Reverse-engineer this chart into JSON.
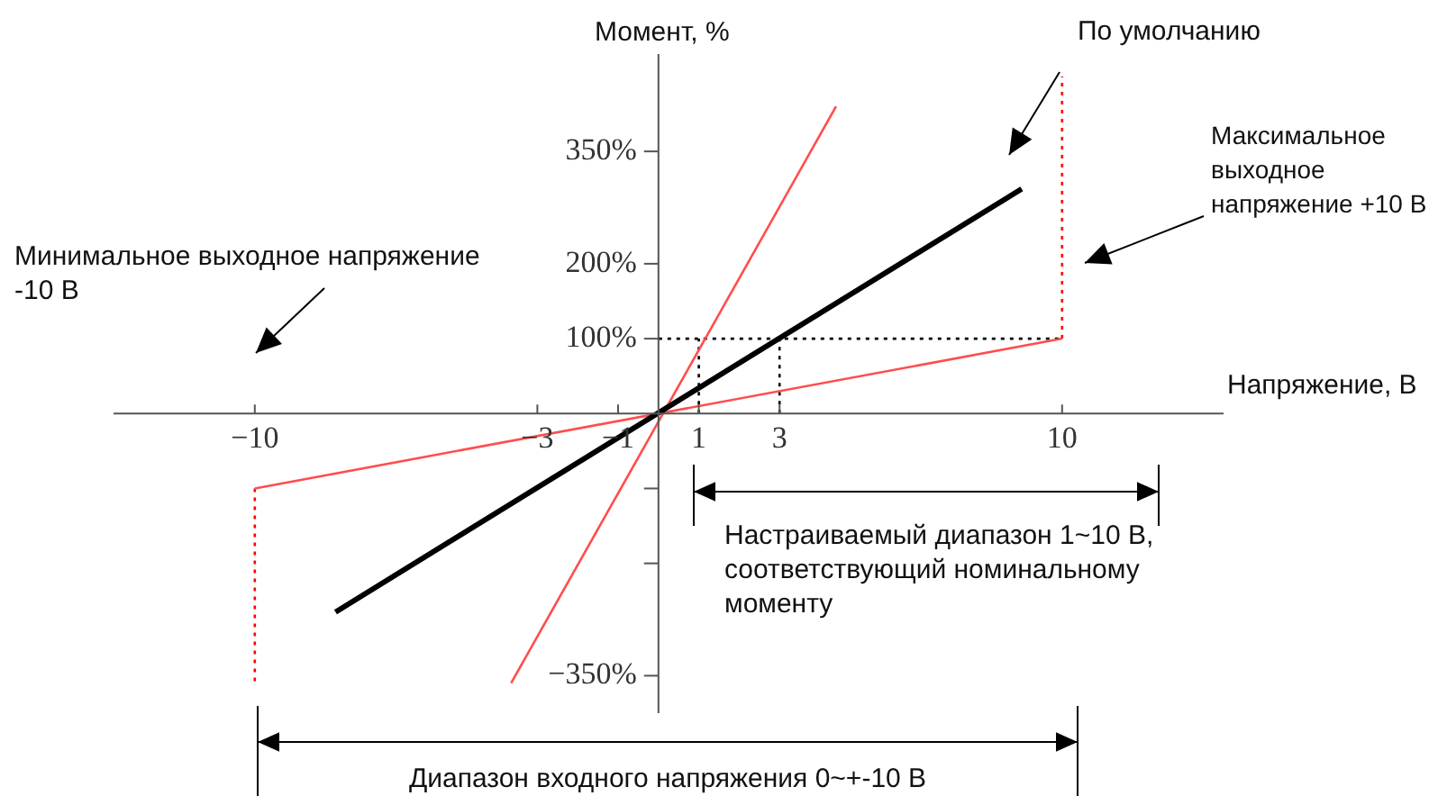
{
  "chart_data": {
    "type": "line",
    "xlabel": "Напряжение, В",
    "ylabel": "Момент, %",
    "xlim": [
      -13.5,
      14
    ],
    "ylim": [
      -400,
      480
    ],
    "xticks": [
      -10,
      -3,
      -1,
      1,
      3,
      10
    ],
    "yticks": [
      {
        "value": -350,
        "label": "−350%"
      },
      {
        "value": -200,
        "label": null
      },
      {
        "value": -100,
        "label": null
      },
      {
        "value": 100,
        "label": "100%"
      },
      {
        "value": 200,
        "label": "200%"
      },
      {
        "value": 350,
        "label": "350%"
      }
    ],
    "grid": false,
    "legend": false,
    "marker": "none",
    "series": [
      {
        "type": "line",
        "x": [
          -8,
          9
        ],
        "values": [
          -265,
          300
        ],
        "color": "#000000",
        "line_style": "solid"
      },
      {
        "type": "line",
        "x": [
          -3.65,
          4.4
        ],
        "values": [
          -360,
          410
        ],
        "color": "#ff4d4d",
        "line_style": "solid"
      },
      {
        "type": "line",
        "x": [
          -10,
          10
        ],
        "values": [
          -100,
          100
        ],
        "color": "#ff4d4d",
        "line_style": "solid"
      },
      {
        "type": "line",
        "x": [
          10,
          10
        ],
        "values": [
          100,
          450
        ],
        "color": "#ff0000",
        "line_style": "dotted"
      },
      {
        "type": "line",
        "x": [
          -10,
          -10
        ],
        "values": [
          -100,
          -360
        ],
        "color": "#ff0000",
        "line_style": "dotted"
      },
      {
        "type": "line",
        "x": [
          1,
          1
        ],
        "values": [
          0,
          100
        ],
        "color": "#000000",
        "line_style": "dotted"
      },
      {
        "type": "line",
        "x": [
          3,
          3
        ],
        "values": [
          0,
          100
        ],
        "color": "#000000",
        "line_style": "dotted"
      },
      {
        "type": "line",
        "x": [
          0,
          10
        ],
        "values": [
          100,
          100
        ],
        "color": "#000000",
        "line_style": "dotted"
      }
    ],
    "annotations": [
      "По умолчанию",
      "Максимальное выходное напряжение +10 В",
      "Минимальное выходное напряжение -10 В",
      "Настраиваемый диапазон 1~10 В, соответствующий номинальному моменту",
      "Диапазон входного напряжения 0~+-10 В"
    ]
  }
}
